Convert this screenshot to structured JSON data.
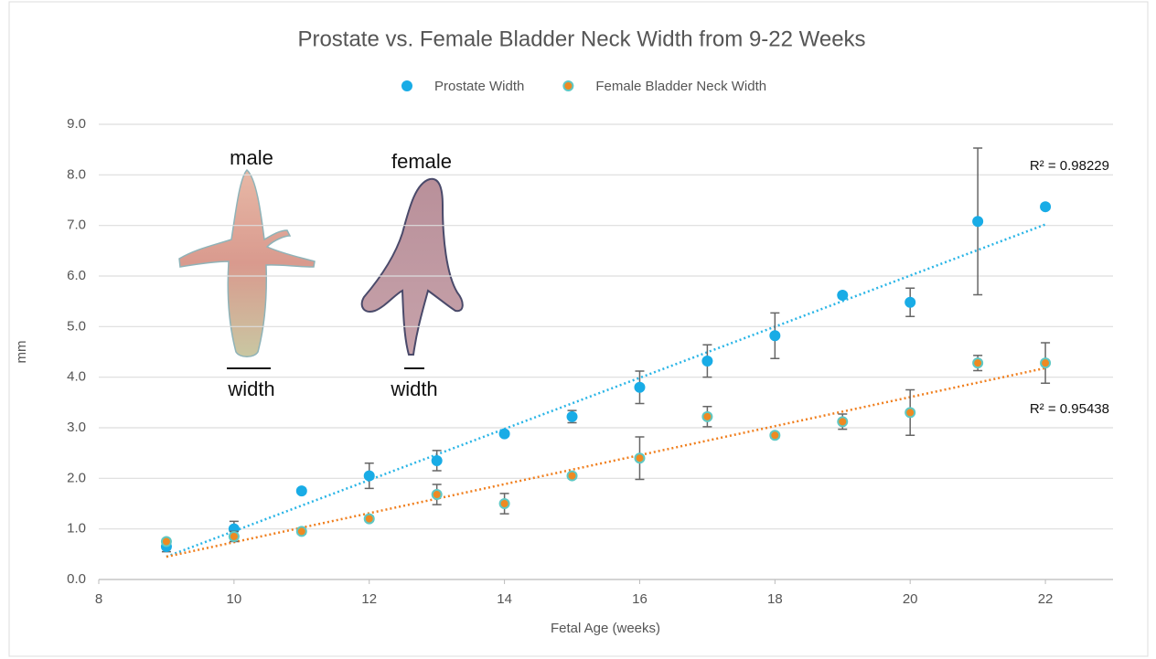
{
  "chart_data": {
    "type": "scatter",
    "title": "Prostate vs. Female Bladder Neck Width from 9-22 Weeks",
    "xlabel": "Fetal Age (weeks)",
    "ylabel": "mm",
    "x": [
      9,
      10,
      11,
      12,
      13,
      14,
      15,
      16,
      17,
      18,
      19,
      20,
      21,
      22
    ],
    "series": [
      {
        "name": "Prostate Width",
        "color": "#19ace6",
        "edge": "#19ace6",
        "values": [
          0.65,
          1.0,
          1.75,
          2.05,
          2.35,
          2.88,
          3.22,
          3.8,
          4.32,
          4.82,
          5.62,
          5.48,
          7.08,
          7.37
        ],
        "errors": [
          0.1,
          0.15,
          0.05,
          0.25,
          0.2,
          0.05,
          0.12,
          0.32,
          0.32,
          0.45,
          0.05,
          0.28,
          1.45,
          0.05
        ],
        "trendline": {
          "color": "#2ab5e6",
          "x": [
            9,
            22
          ],
          "values": [
            0.45,
            7.02
          ],
          "label": "R² = 0.98229"
        }
      },
      {
        "name": "Female Bladder Neck Width",
        "color": "#ee8a22",
        "edge": "#5ec8c4",
        "values": [
          0.75,
          0.85,
          0.95,
          1.2,
          1.68,
          1.5,
          2.05,
          2.4,
          3.22,
          2.85,
          3.12,
          3.3,
          4.28,
          4.28
        ],
        "errors": [
          0.05,
          0.1,
          0.05,
          0.05,
          0.2,
          0.2,
          0.05,
          0.42,
          0.2,
          0.05,
          0.15,
          0.45,
          0.15,
          0.4
        ],
        "trendline": {
          "color": "#f07f1e",
          "x": [
            9,
            22
          ],
          "values": [
            0.45,
            4.18
          ],
          "label": "R² = 0.95438"
        }
      }
    ],
    "xlim": [
      8,
      23
    ],
    "xticks": [
      8,
      10,
      12,
      14,
      16,
      18,
      20,
      22
    ],
    "ylim": [
      0,
      9
    ],
    "yticks": [
      {
        "value": 0,
        "label": "0.0"
      },
      {
        "value": 1,
        "label": "1.0"
      },
      {
        "value": 2,
        "label": "2.0"
      },
      {
        "value": 3,
        "label": "3.0"
      },
      {
        "value": 4,
        "label": "4.0"
      },
      {
        "value": 5,
        "label": "5.0"
      },
      {
        "value": 6,
        "label": "6.0"
      },
      {
        "value": 7,
        "label": "7.0"
      },
      {
        "value": 8,
        "label": "8.0"
      },
      {
        "value": 9,
        "label": "9.0"
      }
    ],
    "grid": true,
    "legend": "top",
    "annotations": [
      "male",
      "female",
      "width",
      "width"
    ]
  }
}
